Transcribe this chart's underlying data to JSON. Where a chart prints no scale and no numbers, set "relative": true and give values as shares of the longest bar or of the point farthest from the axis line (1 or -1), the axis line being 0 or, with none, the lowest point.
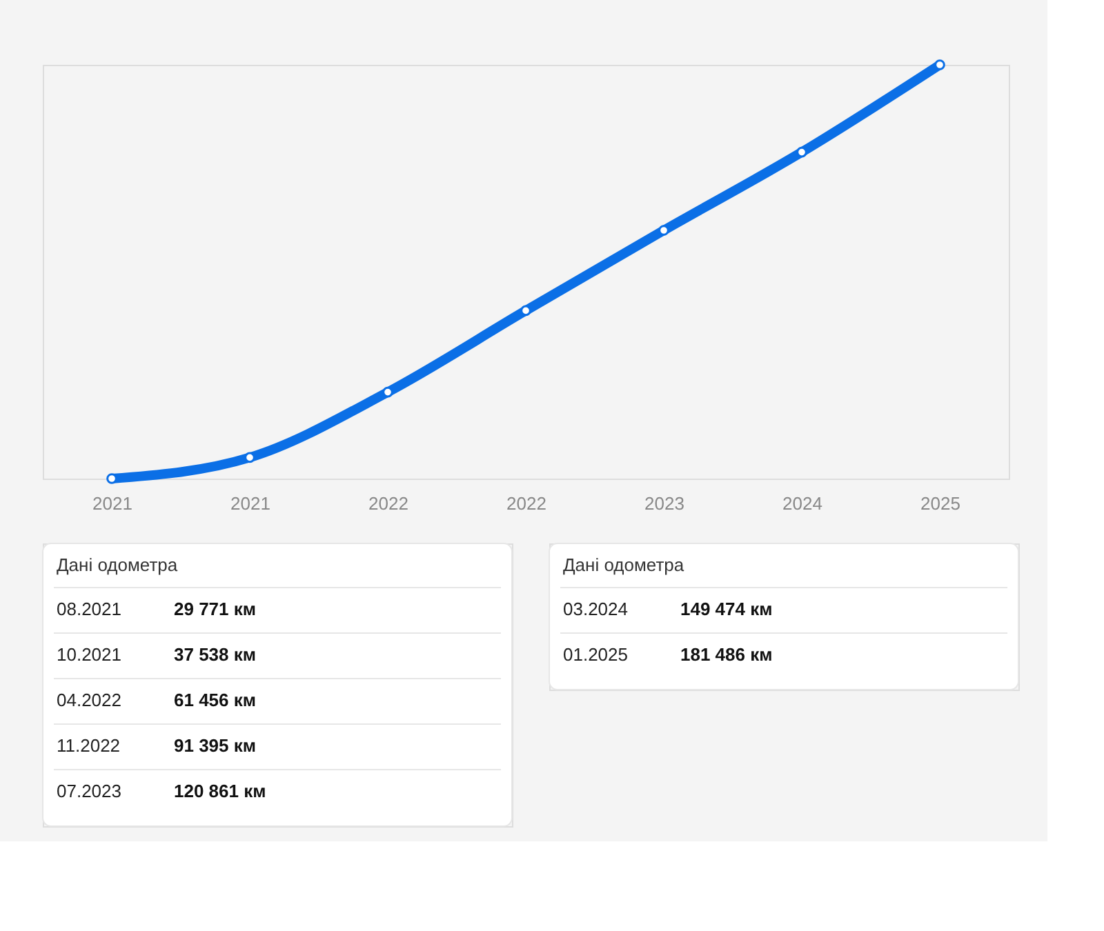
{
  "chart_data": {
    "type": "line",
    "relative": true,
    "categories": [
      "2021",
      "2021",
      "2022",
      "2022",
      "2023",
      "2024",
      "2025"
    ],
    "series": [
      {
        "color": "#0b6fe6",
        "values": [
          0,
          0.051,
          0.209,
          0.406,
          0.6,
          0.789,
          1
        ]
      }
    ],
    "annotations": [
      "Дані одометра",
      "08.2021",
      "29 771 км",
      "10.2021",
      "37 538 км",
      "04.2022",
      "61 456 км",
      "11.2022",
      "91 395 км",
      "07.2023",
      "120 861 км",
      "Дані одометра",
      "03.2024",
      "149 474 км",
      "01.2025",
      "181 486 км"
    ],
    "marker": "circle",
    "line_style": "solid",
    "grid": false,
    "legend": false
  }
}
